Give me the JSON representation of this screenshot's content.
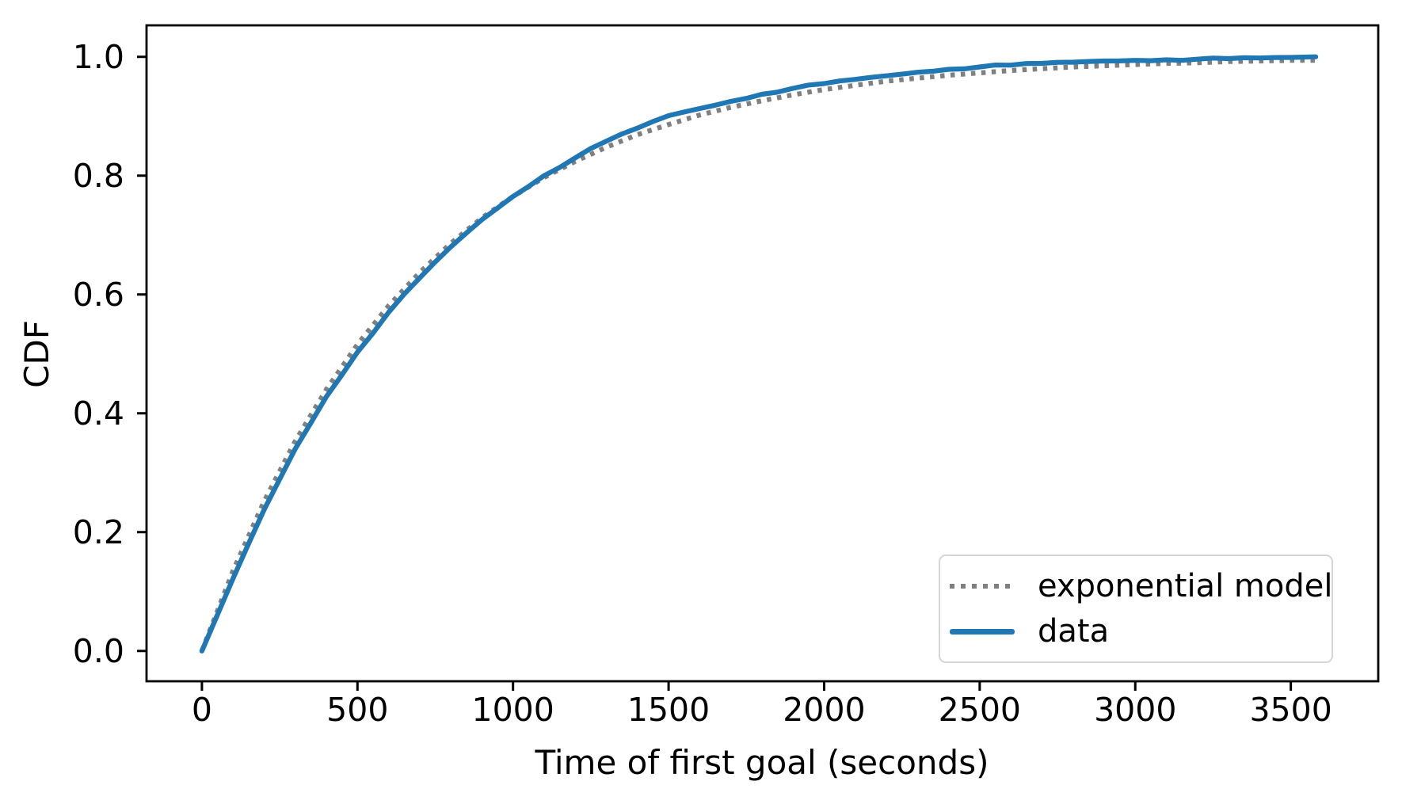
{
  "chart_data": {
    "type": "line",
    "title": "",
    "xlabel": "Time of first goal (seconds)",
    "ylabel": "CDF",
    "grid": false,
    "legend_position": "lower right",
    "xlim": [
      -178,
      3781
    ],
    "ylim": [
      -0.051,
      1.053
    ],
    "x_tick_values": [
      0,
      500,
      1000,
      1500,
      2000,
      2500,
      3000,
      3500
    ],
    "x_tick_labels": [
      "0",
      "500",
      "1000",
      "1500",
      "2000",
      "2500",
      "3000",
      "3500"
    ],
    "y_tick_values": [
      0.0,
      0.2,
      0.4,
      0.6,
      0.8,
      1.0
    ],
    "y_tick_labels": [
      "0.0",
      "0.2",
      "0.4",
      "0.6",
      "0.8",
      "1.0"
    ],
    "x": [
      0,
      100,
      200,
      300,
      400,
      500,
      600,
      700,
      800,
      900,
      1000,
      1100,
      1200,
      1300,
      1400,
      1500,
      1600,
      1700,
      1800,
      1900,
      2000,
      2100,
      2200,
      2300,
      2400,
      2500,
      2600,
      2700,
      2800,
      2900,
      3000,
      3100,
      3200,
      3300,
      3400,
      3500,
      3580
    ],
    "series": [
      {
        "name": "exponential model",
        "style": "dotted",
        "color": "#808080",
        "values": [
          0.0,
          0.135,
          0.252,
          0.353,
          0.44,
          0.516,
          0.581,
          0.637,
          0.686,
          0.729,
          0.765,
          0.797,
          0.824,
          0.848,
          0.869,
          0.886,
          0.902,
          0.915,
          0.926,
          0.936,
          0.945,
          0.952,
          0.959,
          0.964,
          0.969,
          0.973,
          0.977,
          0.98,
          0.983,
          0.985,
          0.987,
          0.989,
          0.99,
          0.992,
          0.993,
          0.994,
          0.994
        ]
      },
      {
        "name": "data",
        "style": "solid",
        "color": "#1f77b4",
        "values": [
          0.0,
          0.122,
          0.238,
          0.34,
          0.428,
          0.503,
          0.57,
          0.628,
          0.68,
          0.726,
          0.765,
          0.8,
          0.83,
          0.858,
          0.88,
          0.901,
          0.913,
          0.925,
          0.937,
          0.947,
          0.955,
          0.962,
          0.968,
          0.974,
          0.979,
          0.983,
          0.986,
          0.989,
          0.991,
          0.993,
          0.994,
          0.995,
          0.996,
          0.997,
          0.998,
          0.999,
          1.0
        ]
      }
    ],
    "colors": {
      "axis": "#000000",
      "text": "#000000",
      "legend_border": "#d5d5d5",
      "background": "#ffffff"
    }
  }
}
